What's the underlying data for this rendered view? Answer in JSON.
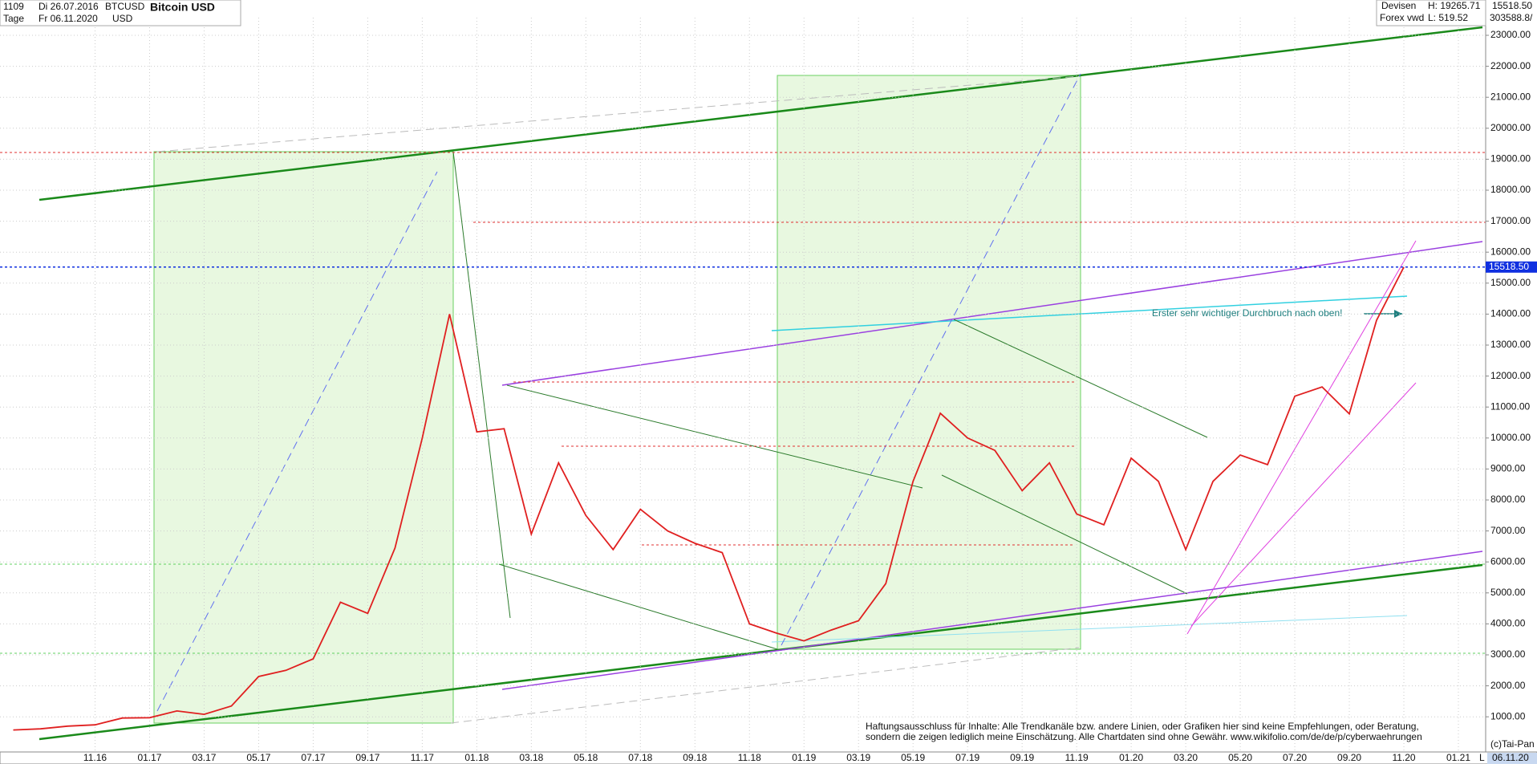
{
  "header": {
    "id": "1109",
    "start": "Di 26.07.2016",
    "symbol": "BTCUSD",
    "title": "Bitcoin USD",
    "period": "Tage",
    "end": "Fr 06.11.2020",
    "currency": "USD",
    "market": "Devisen",
    "source": "Forex vwd",
    "high": "H: 19265.71",
    "low": "L: 519.52",
    "last": "15518.50",
    "volume": "303588.8/"
  },
  "chart_data": {
    "type": "line",
    "title": "Bitcoin USD",
    "series": [
      {
        "name": "BTCUSD",
        "color": "#e02020",
        "x": [
          "08.16",
          "09.16",
          "10.16",
          "11.16",
          "12.16",
          "01.17",
          "02.17",
          "03.17",
          "04.17",
          "05.17",
          "06.17",
          "07.17",
          "08.17",
          "09.17",
          "10.17",
          "11.17",
          "12.17",
          "01.18",
          "02.18",
          "03.18",
          "04.18",
          "05.18",
          "06.18",
          "07.18",
          "08.18",
          "09.18",
          "10.18",
          "11.18",
          "12.18",
          "01.19",
          "02.19",
          "03.19",
          "04.19",
          "05.19",
          "06.19",
          "07.19",
          "08.19",
          "09.19",
          "10.19",
          "11.19",
          "12.19",
          "01.20",
          "02.20",
          "03.20",
          "04.20",
          "05.20",
          "06.20",
          "07.20",
          "08.20",
          "09.20",
          "10.20",
          "11.20"
        ],
        "values": [
          575,
          610,
          700,
          740,
          960,
          970,
          1190,
          1080,
          1350,
          2300,
          2500,
          2870,
          4700,
          4340,
          6450,
          10000,
          14000,
          10200,
          10300,
          6900,
          9200,
          7500,
          6400,
          7700,
          7000,
          6600,
          6300,
          4000,
          3700,
          3450,
          3800,
          4100,
          5300,
          8600,
          10800,
          10000,
          9600,
          8300,
          9200,
          7550,
          7200,
          9350,
          8600,
          6400,
          8600,
          9450,
          9140,
          11350,
          11650,
          10780,
          13800,
          15518.5
        ]
      }
    ],
    "xticks": [
      "11.16",
      "01.17",
      "03.17",
      "05.17",
      "07.17",
      "09.17",
      "11.17",
      "01.18",
      "03.18",
      "05.18",
      "07.18",
      "09.18",
      "11.18",
      "01.19",
      "03.19",
      "05.19",
      "07.19",
      "09.19",
      "11.19",
      "01.20",
      "03.20",
      "05.20",
      "07.20",
      "09.20",
      "11.20",
      "01.21"
    ],
    "ylim": [
      -135,
      23570
    ],
    "yticks": [
      {
        "value": 1000,
        "label": "1000.00"
      },
      {
        "value": 2000,
        "label": "2000.00"
      },
      {
        "value": 3000,
        "label": "3000.00"
      },
      {
        "value": 4000,
        "label": "4000.00"
      },
      {
        "value": 5000,
        "label": "5000.00"
      },
      {
        "value": 6000,
        "label": "6000.00"
      },
      {
        "value": 7000,
        "label": "7000.00"
      },
      {
        "value": 8000,
        "label": "8000.00"
      },
      {
        "value": 9000,
        "label": "9000.00"
      },
      {
        "value": 10000,
        "label": "10000.00"
      },
      {
        "value": 11000,
        "label": "11000.00"
      },
      {
        "value": 12000,
        "label": "12000.00"
      },
      {
        "value": 13000,
        "label": "13000.00"
      },
      {
        "value": 14000,
        "label": "14000.00"
      },
      {
        "value": 15000,
        "label": "15000.00"
      },
      {
        "value": 16000,
        "label": "16000.00"
      },
      {
        "value": 17000,
        "label": "17000.00"
      },
      {
        "value": 18000,
        "label": "18000.00"
      },
      {
        "value": 19000,
        "label": "19000.00"
      },
      {
        "value": 20000,
        "label": "20000.00"
      },
      {
        "value": 21000,
        "label": "21000.00"
      },
      {
        "value": 22000,
        "label": "22000.00"
      },
      {
        "value": 23000,
        "label": "23000.00"
      }
    ],
    "last_price": {
      "value": 15518.5,
      "label": "15518.50",
      "color": "#1030e0"
    },
    "x_end_label": "L",
    "date_label": "06.11.20",
    "annotation": "Erster sehr wichtiger Durchbruch nach oben!",
    "disclaimer": [
      "Haftungsausschluss für Inhalte: Alle Trendkanäle bzw. andere Linien, oder Grafiken hier sind keine Empfehlungen, oder Beratung,",
      "sondern die zeigen lediglich meine  Einschätzung. Alle Chartdaten sind ohne Gewähr.  www.wikifolio.com/de/de/p/cyberwaehrungen"
    ],
    "copyright": "(c)Tai-Pan",
    "grid": true
  }
}
